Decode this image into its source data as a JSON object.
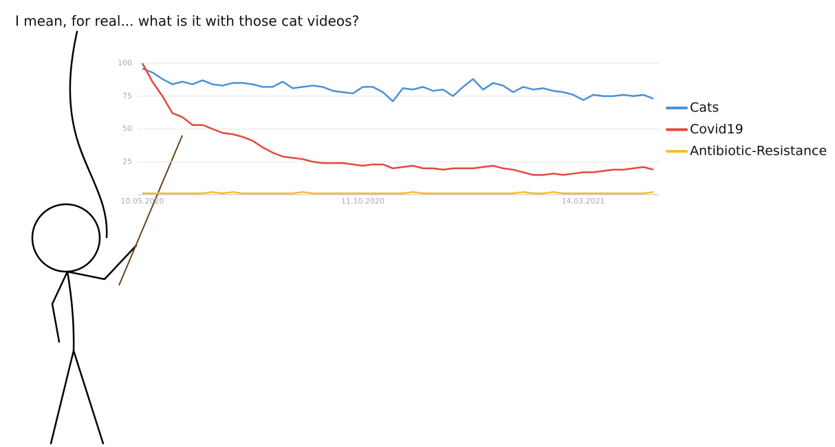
{
  "chart_data": {
    "type": "line",
    "annotation": "I mean, for real... what is it with those cat videos?",
    "categories": [
      "10.05.2020",
      null,
      null,
      null,
      null,
      null,
      null,
      null,
      null,
      null,
      null,
      null,
      null,
      null,
      null,
      null,
      null,
      null,
      null,
      null,
      null,
      null,
      "11.10.2020",
      null,
      null,
      null,
      null,
      null,
      null,
      null,
      null,
      null,
      null,
      null,
      null,
      null,
      null,
      null,
      null,
      null,
      null,
      null,
      null,
      null,
      "14.03.2021",
      null,
      null,
      null,
      null,
      null,
      null,
      null
    ],
    "series": [
      {
        "name": "Cats",
        "color": "#4a90d9",
        "values": [
          96,
          93,
          88,
          84,
          86,
          84,
          87,
          84,
          83,
          85,
          85,
          84,
          82,
          82,
          86,
          81,
          82,
          83,
          82,
          79,
          78,
          77,
          82,
          82,
          78,
          71,
          81,
          80,
          82,
          79,
          80,
          75,
          82,
          88,
          80,
          85,
          83,
          78,
          82,
          80,
          81,
          79,
          78,
          76,
          72,
          76,
          75,
          75,
          76,
          75,
          76,
          73
        ]
      },
      {
        "name": "Covid19",
        "color": "#e5473b",
        "values": [
          100,
          86,
          75,
          62,
          59,
          53,
          53,
          50,
          47,
          46,
          44,
          41,
          36,
          32,
          29,
          28,
          27,
          25,
          24,
          24,
          24,
          23,
          22,
          23,
          23,
          20,
          21,
          22,
          20,
          20,
          19,
          20,
          20,
          20,
          21,
          22,
          20,
          19,
          17,
          15,
          15,
          16,
          15,
          16,
          17,
          17,
          18,
          19,
          19,
          20,
          21,
          19
        ]
      },
      {
        "name": "Antibiotic-Resistance",
        "color": "#f5bf2a",
        "values": [
          1,
          1,
          1,
          1,
          1,
          1,
          1,
          2,
          1,
          2,
          1,
          1,
          1,
          1,
          1,
          1,
          2,
          1,
          1,
          1,
          1,
          1,
          1,
          1,
          1,
          1,
          1,
          2,
          1,
          1,
          1,
          1,
          1,
          1,
          1,
          1,
          1,
          1,
          2,
          1,
          1,
          2,
          1,
          1,
          1,
          1,
          1,
          1,
          1,
          1,
          1,
          2
        ]
      }
    ],
    "ylim": [
      0,
      100
    ],
    "yticks": [
      25,
      50,
      75,
      100
    ],
    "grid": true
  }
}
